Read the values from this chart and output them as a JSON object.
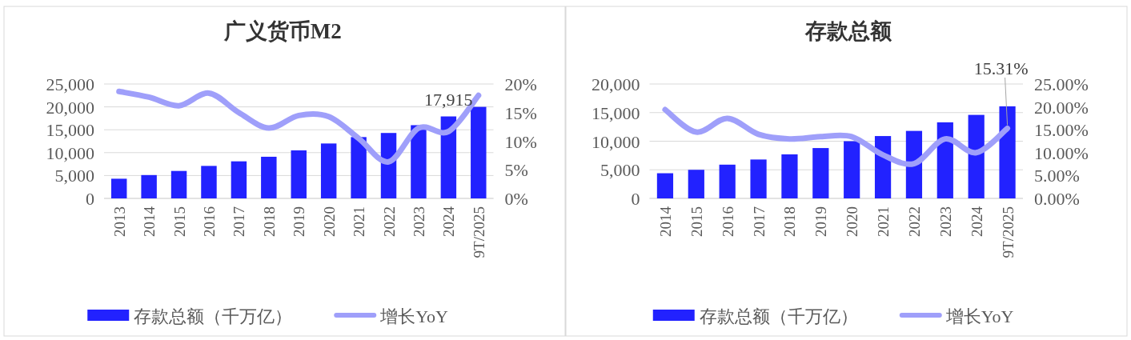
{
  "chart_data": [
    {
      "type": "bar",
      "title": "广义货币M2",
      "categories": [
        "2013",
        "2014",
        "2015",
        "2016",
        "2017",
        "2018",
        "2019",
        "2020",
        "2021",
        "2022",
        "2023",
        "2024",
        "9T/2025"
      ],
      "series": [
        {
          "name": "存款总额（千万亿）",
          "type": "bar",
          "color": "#2222ff",
          "values": [
            4300,
            5100,
            6000,
            7100,
            8100,
            9100,
            10500,
            12000,
            13400,
            14300,
            16000,
            17915,
            20000
          ],
          "value_labels": [
            null,
            null,
            null,
            null,
            null,
            null,
            null,
            null,
            null,
            null,
            null,
            "17,915",
            null
          ]
        },
        {
          "name": "增长YoY",
          "type": "line",
          "axis": "y2",
          "color": "#9f9ffa",
          "values": [
            18.7,
            17.7,
            16.2,
            18.4,
            15.0,
            12.3,
            14.5,
            14.3,
            10.5,
            6.4,
            12.3,
            11.7,
            18.0
          ]
        }
      ],
      "ylim": [
        0,
        25000
      ],
      "yticks": [
        0,
        {
          "value": 5000,
          "label": "5,000"
        },
        {
          "value": 10000,
          "label": "10,000"
        },
        {
          "value": 15000,
          "label": "15,000"
        },
        {
          "value": 20000,
          "label": "20,000"
        },
        {
          "value": 25000,
          "label": "25,000"
        }
      ],
      "y2lim": [
        0,
        20
      ],
      "y2ticks": [
        {
          "value": 0,
          "label": "0%"
        },
        {
          "value": 5,
          "label": "5%"
        },
        {
          "value": 10,
          "label": "10%"
        },
        {
          "value": 15,
          "label": "15%"
        },
        {
          "value": 20,
          "label": "20%"
        }
      ],
      "grid": "y",
      "legend": "bottom"
    },
    {
      "type": "bar",
      "title": "存款总额",
      "categories": [
        "2014",
        "2015",
        "2016",
        "2017",
        "2018",
        "2019",
        "2020",
        "2021",
        "2022",
        "2023",
        "2024",
        "9T/2025"
      ],
      "series": [
        {
          "name": "存款总额（千万亿）",
          "type": "bar",
          "color": "#2222ff",
          "values": [
            4400,
            5000,
            5900,
            6800,
            7700,
            8800,
            10000,
            10900,
            11800,
            13300,
            14600,
            16100
          ]
        },
        {
          "name": "增长YoY",
          "type": "line",
          "axis": "y2",
          "color": "#9f9ffa",
          "values": [
            19.4,
            14.5,
            17.5,
            14.0,
            13.0,
            13.5,
            13.5,
            9.5,
            7.6,
            13.0,
            10.0,
            15.31
          ],
          "value_labels": [
            null,
            null,
            null,
            null,
            null,
            null,
            null,
            null,
            null,
            null,
            null,
            "15.31%"
          ]
        }
      ],
      "ylim": [
        0,
        20000
      ],
      "yticks": [
        0,
        {
          "value": 5000,
          "label": "5,000"
        },
        {
          "value": 10000,
          "label": "10,000"
        },
        {
          "value": 15000,
          "label": "15,000"
        },
        {
          "value": 20000,
          "label": "20,000"
        }
      ],
      "y2lim": [
        0,
        25
      ],
      "y2ticks": [
        {
          "value": 0,
          "label": "0.00%"
        },
        {
          "value": 5,
          "label": "5.00%"
        },
        {
          "value": 10,
          "label": "10.00%"
        },
        {
          "value": 15,
          "label": "15.00%"
        },
        {
          "value": 20,
          "label": "20.00%"
        },
        {
          "value": 25,
          "label": "25.00%"
        }
      ],
      "grid": "y",
      "legend": "bottom"
    }
  ]
}
